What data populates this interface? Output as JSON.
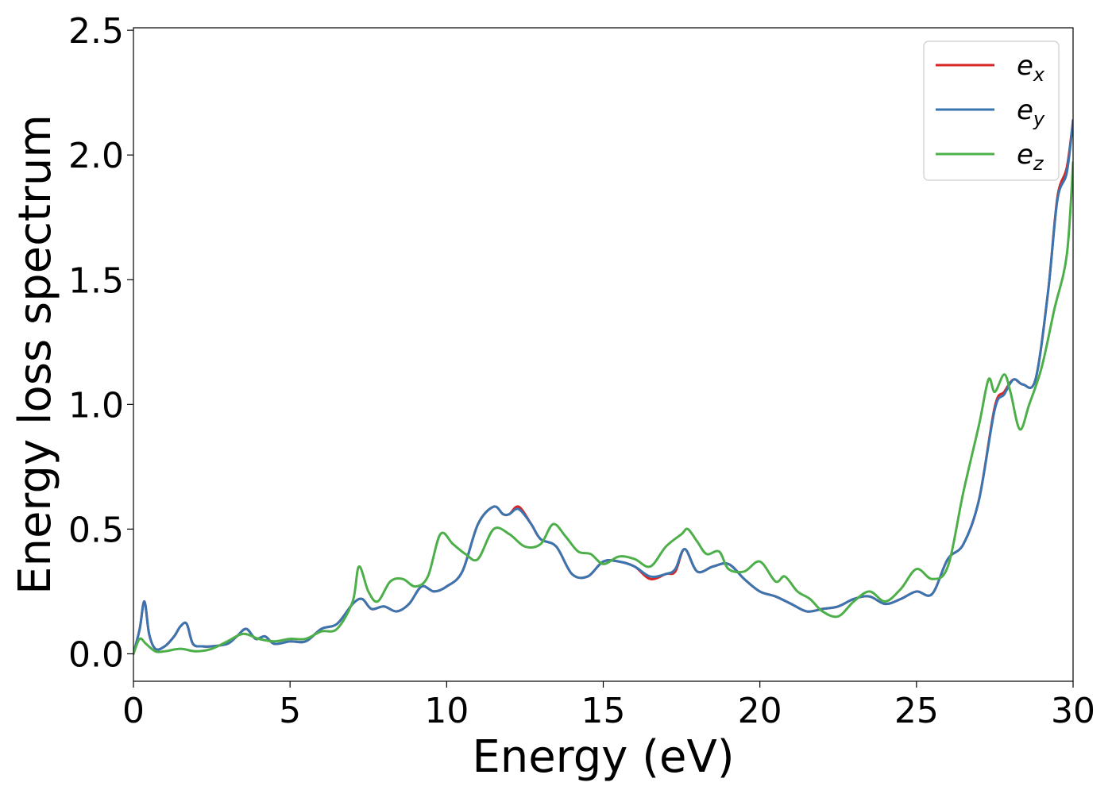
{
  "chart_data": {
    "type": "line",
    "title": "",
    "xlabel": "Energy (eV)",
    "ylabel": "Energy loss spectrum",
    "xlim": [
      0,
      30
    ],
    "ylim": [
      -0.11,
      2.51
    ],
    "xticks": [
      0,
      5,
      10,
      15,
      20,
      25,
      30
    ],
    "xtick_labels": [
      "0",
      "5",
      "10",
      "15",
      "20",
      "25",
      "30"
    ],
    "yticks": [
      0.0,
      0.5,
      1.0,
      1.5,
      2.0,
      2.5
    ],
    "ytick_labels": [
      "0.0",
      "0.5",
      "1.0",
      "1.5",
      "2.0",
      "2.5"
    ],
    "grid": false,
    "legend_position": "top-right",
    "series": [
      {
        "name": "e_x",
        "legend_base": "e",
        "legend_sub": "x",
        "color": "#d62728",
        "x": [
          0,
          0.2,
          0.35,
          0.5,
          0.7,
          1.0,
          1.3,
          1.5,
          1.7,
          1.9,
          2.2,
          2.5,
          3.0,
          3.3,
          3.6,
          3.9,
          4.2,
          4.5,
          5.0,
          5.5,
          6.0,
          6.5,
          7.0,
          7.3,
          7.6,
          8.0,
          8.4,
          8.8,
          9.2,
          9.6,
          10.0,
          10.5,
          11.0,
          11.5,
          11.8,
          12.0,
          12.3,
          12.7,
          13.0,
          13.5,
          14.0,
          14.5,
          15.0,
          15.5,
          16.0,
          16.5,
          17.0,
          17.3,
          17.6,
          18.0,
          18.5,
          19.0,
          19.5,
          20.0,
          20.5,
          21.0,
          21.5,
          22.0,
          22.5,
          23.0,
          23.5,
          24.0,
          24.5,
          25.0,
          25.5,
          26.0,
          26.5,
          27.0,
          27.5,
          27.8,
          28.1,
          28.4,
          28.8,
          29.2,
          29.5,
          29.8,
          30.0
        ],
        "y": [
          0.0,
          0.1,
          0.21,
          0.08,
          0.02,
          0.03,
          0.07,
          0.11,
          0.12,
          0.04,
          0.03,
          0.03,
          0.04,
          0.07,
          0.1,
          0.06,
          0.07,
          0.04,
          0.05,
          0.05,
          0.1,
          0.12,
          0.2,
          0.22,
          0.18,
          0.19,
          0.17,
          0.2,
          0.27,
          0.25,
          0.27,
          0.33,
          0.52,
          0.59,
          0.56,
          0.56,
          0.59,
          0.52,
          0.46,
          0.43,
          0.32,
          0.31,
          0.37,
          0.37,
          0.35,
          0.3,
          0.32,
          0.33,
          0.42,
          0.33,
          0.35,
          0.36,
          0.3,
          0.25,
          0.23,
          0.2,
          0.17,
          0.18,
          0.19,
          0.22,
          0.23,
          0.2,
          0.22,
          0.25,
          0.24,
          0.38,
          0.44,
          0.62,
          0.99,
          1.05,
          1.1,
          1.08,
          1.1,
          1.45,
          1.83,
          1.95,
          2.14
        ]
      },
      {
        "name": "e_y",
        "legend_base": "e",
        "legend_sub": "y",
        "color": "#3b75af",
        "x": [
          0,
          0.2,
          0.35,
          0.5,
          0.7,
          1.0,
          1.3,
          1.5,
          1.7,
          1.9,
          2.2,
          2.5,
          3.0,
          3.3,
          3.6,
          3.9,
          4.2,
          4.5,
          5.0,
          5.5,
          6.0,
          6.5,
          7.0,
          7.3,
          7.6,
          8.0,
          8.4,
          8.8,
          9.2,
          9.6,
          10.0,
          10.5,
          11.0,
          11.5,
          11.8,
          12.0,
          12.3,
          12.7,
          13.0,
          13.5,
          14.0,
          14.5,
          15.0,
          15.5,
          16.0,
          16.5,
          17.0,
          17.3,
          17.6,
          18.0,
          18.5,
          19.0,
          19.5,
          20.0,
          20.5,
          21.0,
          21.5,
          22.0,
          22.5,
          23.0,
          23.5,
          24.0,
          24.5,
          25.0,
          25.5,
          26.0,
          26.5,
          27.0,
          27.5,
          27.8,
          28.1,
          28.4,
          28.8,
          29.2,
          29.5,
          29.8,
          30.0
        ],
        "y": [
          0.0,
          0.1,
          0.21,
          0.08,
          0.02,
          0.03,
          0.07,
          0.11,
          0.12,
          0.04,
          0.03,
          0.03,
          0.04,
          0.07,
          0.1,
          0.06,
          0.07,
          0.04,
          0.05,
          0.05,
          0.1,
          0.12,
          0.2,
          0.22,
          0.18,
          0.19,
          0.17,
          0.2,
          0.27,
          0.25,
          0.27,
          0.33,
          0.52,
          0.59,
          0.56,
          0.56,
          0.58,
          0.52,
          0.46,
          0.43,
          0.32,
          0.31,
          0.37,
          0.37,
          0.35,
          0.31,
          0.32,
          0.34,
          0.42,
          0.33,
          0.35,
          0.36,
          0.3,
          0.25,
          0.23,
          0.2,
          0.17,
          0.18,
          0.19,
          0.22,
          0.23,
          0.2,
          0.22,
          0.25,
          0.24,
          0.38,
          0.44,
          0.62,
          0.98,
          1.04,
          1.1,
          1.08,
          1.1,
          1.45,
          1.82,
          1.93,
          2.14
        ]
      },
      {
        "name": "e_z",
        "legend_base": "e",
        "legend_sub": "z",
        "color": "#4daf4a",
        "x": [
          0,
          0.2,
          0.4,
          0.7,
          1.0,
          1.5,
          2.0,
          2.5,
          3.0,
          3.5,
          4.0,
          4.5,
          5.0,
          5.5,
          6.0,
          6.5,
          7.0,
          7.2,
          7.5,
          7.8,
          8.2,
          8.6,
          9.0,
          9.4,
          9.8,
          10.2,
          10.6,
          11.0,
          11.5,
          12.0,
          12.5,
          13.0,
          13.4,
          13.8,
          14.2,
          14.6,
          15.0,
          15.5,
          16.0,
          16.5,
          17.0,
          17.5,
          17.7,
          18.0,
          18.3,
          18.7,
          19.0,
          19.5,
          20.0,
          20.5,
          20.8,
          21.2,
          21.6,
          22.0,
          22.5,
          23.0,
          23.5,
          24.0,
          24.5,
          25.0,
          25.5,
          26.0,
          26.5,
          27.0,
          27.3,
          27.5,
          27.8,
          28.0,
          28.3,
          28.6,
          29.0,
          29.4,
          29.8,
          30.0
        ],
        "y": [
          0.0,
          0.06,
          0.04,
          0.01,
          0.01,
          0.02,
          0.01,
          0.02,
          0.05,
          0.08,
          0.06,
          0.05,
          0.06,
          0.06,
          0.09,
          0.1,
          0.21,
          0.35,
          0.25,
          0.21,
          0.29,
          0.3,
          0.27,
          0.31,
          0.48,
          0.44,
          0.4,
          0.38,
          0.5,
          0.48,
          0.43,
          0.44,
          0.52,
          0.47,
          0.41,
          0.4,
          0.36,
          0.39,
          0.38,
          0.35,
          0.43,
          0.48,
          0.5,
          0.45,
          0.4,
          0.41,
          0.34,
          0.33,
          0.37,
          0.29,
          0.31,
          0.25,
          0.22,
          0.17,
          0.15,
          0.21,
          0.25,
          0.21,
          0.26,
          0.34,
          0.3,
          0.35,
          0.65,
          0.92,
          1.1,
          1.05,
          1.12,
          1.05,
          0.9,
          1.0,
          1.15,
          1.38,
          1.6,
          1.97
        ]
      }
    ]
  }
}
